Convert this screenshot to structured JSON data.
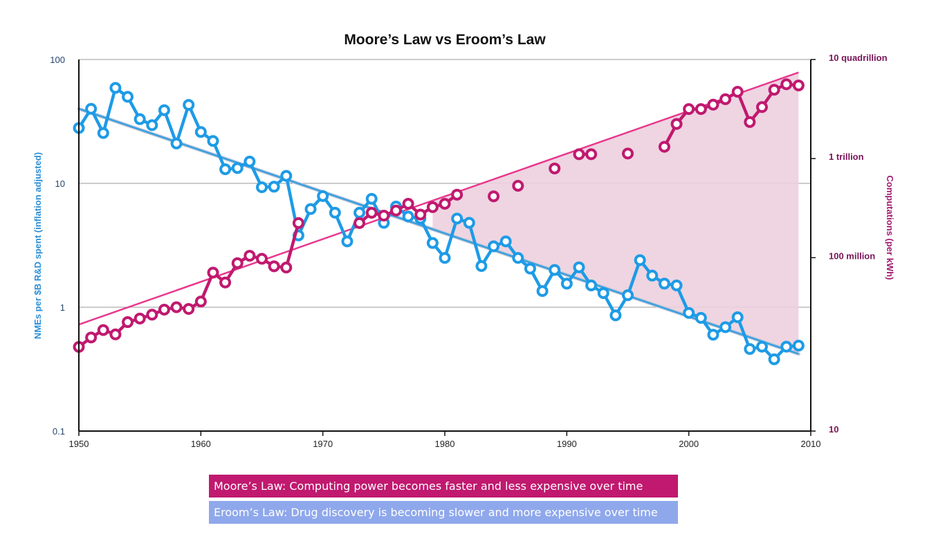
{
  "chart_data": {
    "type": "line",
    "title": "Moore’s Law vs Eroom’s Law",
    "x_axis": {
      "range": [
        1950,
        2010
      ],
      "ticks": [
        "1950",
        "1960",
        "1970",
        "1980",
        "1990",
        "2000",
        "2010"
      ]
    },
    "y_left": {
      "label": "NMEs per $B R&D spent (inflation adjusted)",
      "scale": "log",
      "range": [
        0.1,
        100
      ],
      "ticks": [
        {
          "value": 0.1,
          "label": "0.1"
        },
        {
          "value": 1,
          "label": "1"
        },
        {
          "value": 10,
          "label": "10"
        },
        {
          "value": 100,
          "label": "100"
        }
      ]
    },
    "y_right": {
      "label": "Computations (per kWh)",
      "scale": "log",
      "range": [
        10,
        10000000000000000
      ],
      "ticks": [
        {
          "value": 10,
          "label": "10"
        },
        {
          "value": 100000000,
          "label": "100 million"
        },
        {
          "value": 1000000000000,
          "label": "1 trillion"
        },
        {
          "value": 10000000000000000,
          "label": "10 quadrillion"
        }
      ]
    },
    "grid": "horizontal",
    "series": [
      {
        "name": "Eroom’s Law: Drug discovery is becoming slower and more expensive over time",
        "axis": "left",
        "color": "#1e9be6",
        "x": [
          1950,
          1951,
          1952,
          1953,
          1954,
          1955,
          1956,
          1957,
          1958,
          1959,
          1960,
          1961,
          1962,
          1963,
          1964,
          1965,
          1966,
          1967,
          1968,
          1969,
          1970,
          1971,
          1972,
          1973,
          1974,
          1975,
          1976,
          1977,
          1978,
          1979,
          1980,
          1981,
          1982,
          1983,
          1984,
          1985,
          1986,
          1987,
          1988,
          1989,
          1990,
          1991,
          1992,
          1993,
          1994,
          1995,
          1996,
          1997,
          1998,
          1999,
          2000,
          2001,
          2002,
          2003,
          2004,
          2005,
          2006,
          2007,
          2008,
          2009
        ],
        "values": [
          28,
          40,
          25.5,
          59,
          50,
          33,
          29.5,
          39,
          21,
          43,
          26,
          22,
          13,
          13.3,
          15,
          9.3,
          9.4,
          11.5,
          3.8,
          6.2,
          7.9,
          5.8,
          3.4,
          5.8,
          7.5,
          4.8,
          6.5,
          5.4,
          5.2,
          3.3,
          2.5,
          5.2,
          4.8,
          2.15,
          3.1,
          3.4,
          2.5,
          2.05,
          1.35,
          2.0,
          1.55,
          2.1,
          1.5,
          1.3,
          0.86,
          1.25,
          2.4,
          1.8,
          1.55,
          1.5,
          0.9,
          0.82,
          0.6,
          0.69,
          0.83,
          0.46,
          0.48,
          0.38,
          0.48,
          0.49
        ]
      },
      {
        "name": "Moore’s Law: Computing power becomes faster and less expensive over time",
        "axis": "right",
        "color": "#c0196f",
        "x": [
          1950,
          1951,
          1952,
          1953,
          1954,
          1955,
          1956,
          1957,
          1958,
          1959,
          1960,
          1961,
          1962,
          1963,
          1964,
          1965,
          1966,
          1967,
          1968,
          1973,
          1974,
          1975,
          1976,
          1977,
          1978,
          1979,
          1980,
          1981,
          1984,
          1986,
          1989,
          1991,
          1992,
          1995,
          1998,
          1999,
          2000,
          2001,
          2002,
          2003,
          2004,
          2005,
          2006,
          2007,
          2008,
          2009
        ],
        "values": [
          25000,
          60000,
          120000,
          80000,
          250000,
          350000,
          500000,
          800000,
          1000000,
          850000,
          1700000,
          25000000,
          10000000,
          60000000,
          120000000,
          90000000,
          45000000,
          40000000,
          2500000000,
          2500000000,
          6500000000,
          5000000000,
          8000000000,
          15000000000,
          5500000000,
          11000000000,
          15000000000,
          35000000000,
          30000000000,
          80000000000,
          400000000000,
          1500000000000,
          1500000000000,
          1600000000000,
          3000000000000,
          25000000000000,
          100000000000000,
          100000000000000,
          150000000000000,
          250000000000000,
          500000000000000,
          30000000000000,
          120000000000000,
          600000000000000,
          1000000000000000,
          900000000000000
        ]
      }
    ],
    "trend_lines": [
      {
        "series": "Eroom’s Law",
        "axis": "left",
        "from": [
          1950,
          40
        ],
        "to": [
          2009,
          0.42
        ],
        "color": "#3a9fe0"
      },
      {
        "series": "Moore’s Law",
        "axis": "right",
        "from": [
          1950,
          200000
        ],
        "to": [
          2009,
          3000000000000000
        ],
        "color": "#e8388e"
      }
    ],
    "legend": {
      "placement": "bottom",
      "entries": [
        {
          "text": "Moore’s Law: Computing power becomes faster and less expensive over time",
          "color": "#c0196f"
        },
        {
          "text": "Eroom’s Law: Drug discovery is becoming slower and more expensive over time",
          "color": "#8fa8ec"
        }
      ]
    },
    "shaded_region": {
      "between": [
        "Moore’s Law trend",
        "Eroom’s Law trend"
      ],
      "from_x": 1979,
      "to_x": 2009,
      "color": "#ecd0de"
    }
  }
}
